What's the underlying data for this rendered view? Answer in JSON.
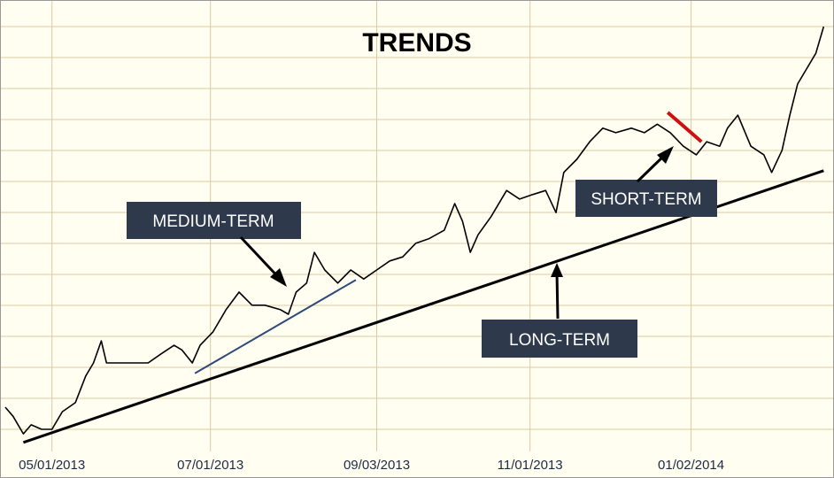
{
  "chart_data": {
    "type": "line",
    "title": "TRENDS",
    "color": "#000000",
    "x": [
      -18,
      -15,
      -11,
      -8,
      -4,
      0,
      4,
      9,
      13,
      16,
      19,
      21,
      26,
      31,
      37,
      42,
      47,
      50,
      54,
      57,
      62,
      67,
      72,
      77,
      82,
      88,
      91,
      94,
      98,
      101,
      105,
      110,
      115,
      120,
      125,
      130,
      135,
      140,
      145,
      151,
      155,
      158,
      161,
      164,
      169,
      175,
      180,
      185,
      190,
      194,
      197,
      202,
      207,
      212,
      217,
      223,
      228,
      233,
      238,
      243,
      248,
      252,
      257,
      260,
      264,
      269,
      274,
      277,
      281,
      284,
      287,
      291,
      294,
      297
    ],
    "values": [
      9.8,
      7.8,
      3.9,
      5.9,
      4.9,
      4.9,
      8.8,
      10.8,
      16.7,
      19.6,
      24.5,
      19.6,
      19.6,
      19.6,
      19.6,
      21.6,
      23.5,
      22.5,
      19.6,
      23.5,
      26.5,
      31.4,
      35.3,
      32.4,
      32.4,
      31.4,
      30.4,
      35.3,
      37.3,
      44.1,
      40.2,
      37.3,
      40.2,
      38.2,
      40.2,
      42.2,
      43.1,
      46.1,
      47.1,
      49,
      54.9,
      51,
      44.1,
      48,
      52,
      57.8,
      55.9,
      56.9,
      57.8,
      52.9,
      61.8,
      64.7,
      68.6,
      71.6,
      70.6,
      71.6,
      70.6,
      72.5,
      70.6,
      67.6,
      65.7,
      68.6,
      67.6,
      71.6,
      74.5,
      67.6,
      65.7,
      61.8,
      66.7,
      74.5,
      81.4,
      85.3,
      88.2,
      94.1
    ],
    "xlim": [
      -20,
      301
    ],
    "ylim": [
      0,
      100
    ],
    "xticks": [
      {
        "value": 0,
        "label": "05/01/2013"
      },
      {
        "value": 61,
        "label": "07/01/2013"
      },
      {
        "value": 125,
        "label": "09/03/2013"
      },
      {
        "value": 184,
        "label": "11/01/2013"
      },
      {
        "value": 246,
        "label": "01/02/2014"
      }
    ],
    "grid": true,
    "trendlines": [
      {
        "label": "LONG-TERM",
        "color": "#000000",
        "x": [
          -11,
          297
        ],
        "y": [
          2.0,
          62.2
        ]
      },
      {
        "label": "MEDIUM-TERM",
        "color": "#2e4a7a",
        "x": [
          55,
          117
        ],
        "y": [
          17.3,
          38.0
        ]
      },
      {
        "label": "SHORT-TERM",
        "color": "#d01010",
        "x": [
          237,
          250
        ],
        "y": [
          75.1,
          68.6
        ]
      }
    ]
  }
}
